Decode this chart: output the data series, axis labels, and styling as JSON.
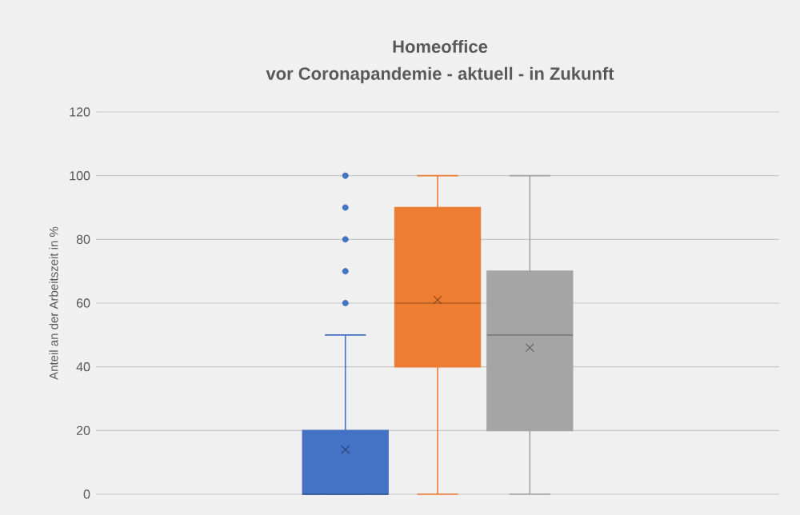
{
  "chart_data": {
    "type": "box",
    "title": "Homeoffice",
    "subtitle": "vor Coronapandemie - aktuell - in Zukunft",
    "ylabel": "Anteil an der Arbeitszeit in %",
    "categories": [
      null
    ],
    "ylim": [
      0,
      120
    ],
    "yticks": [
      0,
      20,
      40,
      60,
      80,
      100,
      120
    ],
    "grid": "y",
    "tick_labels": "y",
    "series": [
      {
        "color": "#4472c4",
        "boxes": [
          {
            "low": 0,
            "q1": 0,
            "median": 0,
            "q3": 20,
            "high": 50,
            "mean": 14,
            "outliers": [
              60,
              70,
              80,
              90,
              100
            ]
          }
        ]
      },
      {
        "color": "#ed7d31",
        "boxes": [
          {
            "low": 0,
            "q1": 40,
            "median": 60,
            "q3": 90,
            "high": 100,
            "mean": 61
          }
        ]
      },
      {
        "color": "#a5a5a5",
        "boxes": [
          {
            "low": 0,
            "q1": 20,
            "median": 50,
            "q3": 70,
            "high": 100,
            "mean": 46
          }
        ]
      }
    ]
  }
}
